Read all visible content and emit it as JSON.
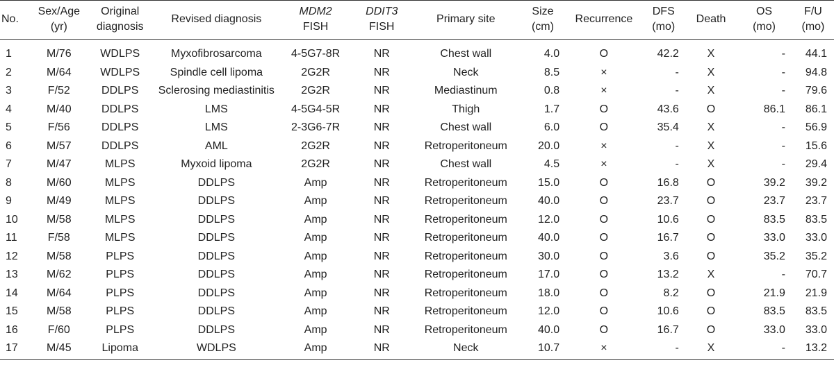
{
  "headers": {
    "no": [
      "No."
    ],
    "sex_age": [
      "Sex/Age",
      "(yr)"
    ],
    "original_dx": [
      "Original",
      "diagnosis"
    ],
    "revised_dx": [
      "Revised diagnosis"
    ],
    "mdm2": [
      "MDM2",
      "FISH"
    ],
    "ddit3": [
      "DDIT3",
      "FISH"
    ],
    "site": [
      "Primary site"
    ],
    "size": [
      "Size",
      "(cm)"
    ],
    "recurrence": [
      "Recurrence"
    ],
    "dfs": [
      "DFS",
      "(mo)"
    ],
    "death": [
      "Death"
    ],
    "os": [
      "OS",
      "(mo)"
    ],
    "fu": [
      "F/U",
      "(mo)"
    ]
  },
  "rows": [
    [
      "1",
      "M/76",
      "WDLPS",
      "Myxofibrosarcoma",
      "4-5G7-8R",
      "NR",
      "Chest wall",
      "4.0",
      "O",
      "42.2",
      "X",
      "-",
      "44.1"
    ],
    [
      "2",
      "M/64",
      "WDLPS",
      "Spindle cell lipoma",
      "2G2R",
      "NR",
      "Neck",
      "8.5",
      "×",
      "-",
      "X",
      "-",
      "94.8"
    ],
    [
      "3",
      "F/52",
      "DDLPS",
      "Sclerosing mediastinitis",
      "2G2R",
      "NR",
      "Mediastinum",
      "0.8",
      "×",
      "-",
      "X",
      "-",
      "79.6"
    ],
    [
      "4",
      "M/40",
      "DDLPS",
      "LMS",
      "4-5G4-5R",
      "NR",
      "Thigh",
      "1.7",
      "O",
      "43.6",
      "O",
      "86.1",
      "86.1"
    ],
    [
      "5",
      "F/56",
      "DDLPS",
      "LMS",
      "2-3G6-7R",
      "NR",
      "Chest wall",
      "6.0",
      "O",
      "35.4",
      "X",
      "-",
      "56.9"
    ],
    [
      "6",
      "M/57",
      "DDLPS",
      "AML",
      "2G2R",
      "NR",
      "Retroperitoneum",
      "20.0",
      "×",
      "-",
      "X",
      "-",
      "15.6"
    ],
    [
      "7",
      "M/47",
      "MLPS",
      "Myxoid lipoma",
      "2G2R",
      "NR",
      "Chest wall",
      "4.5",
      "×",
      "-",
      "X",
      "-",
      "29.4"
    ],
    [
      "8",
      "M/60",
      "MLPS",
      "DDLPS",
      "Amp",
      "NR",
      "Retroperitoneum",
      "15.0",
      "O",
      "16.8",
      "O",
      "39.2",
      "39.2"
    ],
    [
      "9",
      "M/49",
      "MLPS",
      "DDLPS",
      "Amp",
      "NR",
      "Retroperitoneum",
      "40.0",
      "O",
      "23.7",
      "O",
      "23.7",
      "23.7"
    ],
    [
      "10",
      "M/58",
      "MLPS",
      "DDLPS",
      "Amp",
      "NR",
      "Retroperitoneum",
      "12.0",
      "O",
      "10.6",
      "O",
      "83.5",
      "83.5"
    ],
    [
      "11",
      "F/58",
      "MLPS",
      "DDLPS",
      "Amp",
      "NR",
      "Retroperitoneum",
      "40.0",
      "O",
      "16.7",
      "O",
      "33.0",
      "33.0"
    ],
    [
      "12",
      "M/58",
      "PLPS",
      "DDLPS",
      "Amp",
      "NR",
      "Retroperitoneum",
      "30.0",
      "O",
      "3.6",
      "O",
      "35.2",
      "35.2"
    ],
    [
      "13",
      "M/62",
      "PLPS",
      "DDLPS",
      "Amp",
      "NR",
      "Retroperitoneum",
      "17.0",
      "O",
      "13.2",
      "X",
      "-",
      "70.7"
    ],
    [
      "14",
      "M/64",
      "PLPS",
      "DDLPS",
      "Amp",
      "NR",
      "Retroperitoneum",
      "18.0",
      "O",
      "8.2",
      "O",
      "21.9",
      "21.9"
    ],
    [
      "15",
      "M/58",
      "PLPS",
      "DDLPS",
      "Amp",
      "NR",
      "Retroperitoneum",
      "12.0",
      "O",
      "10.6",
      "O",
      "83.5",
      "83.5"
    ],
    [
      "16",
      "F/60",
      "PLPS",
      "DDLPS",
      "Amp",
      "NR",
      "Retroperitoneum",
      "40.0",
      "O",
      "16.7",
      "O",
      "33.0",
      "33.0"
    ],
    [
      "17",
      "M/45",
      "Lipoma",
      "WDLPS",
      "Amp",
      "NR",
      "Neck",
      "10.7",
      "×",
      "-",
      "X",
      "-",
      "13.2"
    ]
  ]
}
